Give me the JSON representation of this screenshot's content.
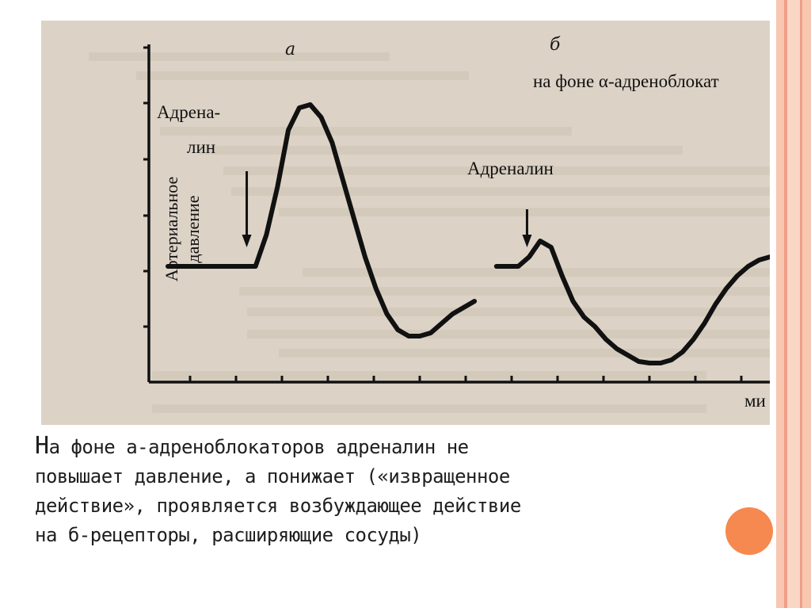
{
  "slide": {
    "colors": {
      "accent": "#f5894f",
      "stripe_light": "#f7c7b2",
      "stripe_dark": "#ee9f86"
    },
    "caption_lines": [
      {
        "first": "Н",
        "rest": "а фоне а-адреноблокаторов адреналин не"
      },
      {
        "first": "",
        "rest": "повышает давление, а понижает («извращенное"
      },
      {
        "first": "",
        "rest": "действие», проявляется возбуждающее действие"
      },
      {
        "first": "",
        "rest": "на б-рецепторы, расширяющие сосуды)"
      }
    ]
  },
  "chart_data": {
    "type": "line",
    "ylabel_lines": [
      "Артериальное",
      "давление"
    ],
    "xlabel": "ми",
    "panels": [
      {
        "letter": "а",
        "annotation_lines": [
          "Адрена-",
          "лин"
        ],
        "points": [
          [
            0,
            35
          ],
          [
            1,
            35
          ],
          [
            2,
            35
          ],
          [
            3,
            35
          ],
          [
            4,
            35
          ],
          [
            4.5,
            45
          ],
          [
            5,
            60
          ],
          [
            5.5,
            78
          ],
          [
            6,
            85
          ],
          [
            6.5,
            86
          ],
          [
            7,
            82
          ],
          [
            7.5,
            74
          ],
          [
            8,
            62
          ],
          [
            8.5,
            50
          ],
          [
            9,
            38
          ],
          [
            9.5,
            28
          ],
          [
            10,
            20
          ],
          [
            10.5,
            15
          ],
          [
            11,
            13
          ],
          [
            11.5,
            13
          ],
          [
            12,
            14
          ],
          [
            12.5,
            17
          ],
          [
            13,
            20
          ],
          [
            13.5,
            22
          ],
          [
            14,
            24
          ]
        ],
        "injection_x": 3.6
      },
      {
        "letter": "б",
        "subtitle": "на фоне α-адреноблокат",
        "annotation_lines": [
          "Адреналин"
        ],
        "points": [
          [
            15,
            35
          ],
          [
            16,
            35
          ],
          [
            16.5,
            38
          ],
          [
            17,
            43
          ],
          [
            17.5,
            41
          ],
          [
            18,
            32
          ],
          [
            18.5,
            24
          ],
          [
            19,
            19
          ],
          [
            19.5,
            16
          ],
          [
            20,
            12
          ],
          [
            20.5,
            9
          ],
          [
            21,
            7
          ],
          [
            21.5,
            5
          ],
          [
            22,
            4.5
          ],
          [
            22.5,
            4.5
          ],
          [
            23,
            5.5
          ],
          [
            23.5,
            8
          ],
          [
            24,
            12
          ],
          [
            24.5,
            17
          ],
          [
            25,
            23
          ],
          [
            25.5,
            28
          ],
          [
            26,
            32
          ],
          [
            26.5,
            35
          ],
          [
            27,
            37
          ],
          [
            27.5,
            38
          ]
        ],
        "injection_x": 16.4
      }
    ]
  }
}
